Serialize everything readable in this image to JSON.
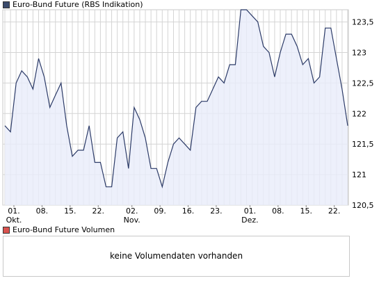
{
  "chart_data": {
    "type": "area",
    "title": "",
    "xlabel": "",
    "ylabel": "",
    "ylim": [
      120.5,
      123.7
    ],
    "yticks": [
      120.5,
      121,
      121.5,
      122,
      122.5,
      123,
      123.5
    ],
    "ytick_labels": [
      "120,5",
      "121",
      "121,5",
      "122",
      "122,5",
      "123",
      "123,5"
    ],
    "xticks": [
      "01.",
      "08.",
      "15.",
      "22.",
      "02.",
      "09.",
      "16.",
      "23.",
      "01.",
      "08.",
      "15.",
      "22."
    ],
    "month_labels": [
      "Okt.",
      "Nov.",
      "Dez."
    ],
    "grid": true,
    "colors": {
      "line": "#2b3a67",
      "fill": "#e8ecfa",
      "grid": "#d4d4d4",
      "border": "#c8c8c8"
    },
    "series": [
      {
        "name": "Euro-Bund Future (RBS Indikation)",
        "values": [
          121.8,
          121.7,
          122.5,
          122.7,
          122.6,
          122.4,
          122.9,
          122.6,
          122.1,
          122.3,
          122.5,
          121.8,
          121.3,
          121.4,
          121.4,
          121.8,
          121.2,
          121.2,
          120.8,
          120.8,
          121.6,
          121.7,
          121.1,
          122.1,
          121.9,
          121.6,
          121.1,
          121.1,
          120.8,
          121.2,
          121.5,
          121.6,
          121.5,
          121.4,
          122.1,
          122.2,
          122.2,
          122.4,
          122.6,
          122.5,
          122.8,
          122.8,
          123.7,
          123.7,
          123.6,
          123.5,
          123.1,
          123.0,
          122.6,
          123.0,
          123.3,
          123.3,
          123.1,
          122.8,
          122.9,
          122.5,
          122.6,
          123.4,
          123.4,
          122.9,
          122.4,
          121.8
        ]
      }
    ]
  },
  "legend_price": "Euro-Bund Future (RBS Indikation)",
  "legend_volume": "Euro-Bund Future Volumen",
  "volume_message": "keine Volumendaten vorhanden",
  "legend_colors": {
    "price": "#3a4a6b",
    "volume": "#d9534f"
  }
}
